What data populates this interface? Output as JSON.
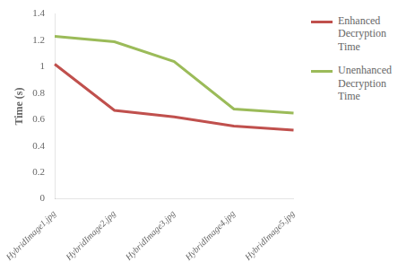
{
  "chart_data": {
    "type": "line",
    "categories": [
      "HybridImage1.jpg",
      "HybridImage2.jpg",
      "HybridImage3.jpg",
      "HybridImage4.jpg",
      "HybridImage5.jpg"
    ],
    "series": [
      {
        "name": "Enhanced Decryption\nTime",
        "color": "#c0504d",
        "values": [
          1.02,
          0.67,
          0.62,
          0.55,
          0.52
        ]
      },
      {
        "name": "Unenhanced\nDecryption Time",
        "color": "#9bbb59",
        "values": [
          1.23,
          1.19,
          1.04,
          0.68,
          0.65
        ]
      }
    ],
    "y_label": "Time (s)",
    "ylim": [
      0,
      1.4
    ],
    "yticks": [
      0,
      0.2,
      0.4,
      0.6,
      0.8,
      1,
      1.2,
      1.4
    ],
    "grid": false,
    "legend": "right"
  }
}
